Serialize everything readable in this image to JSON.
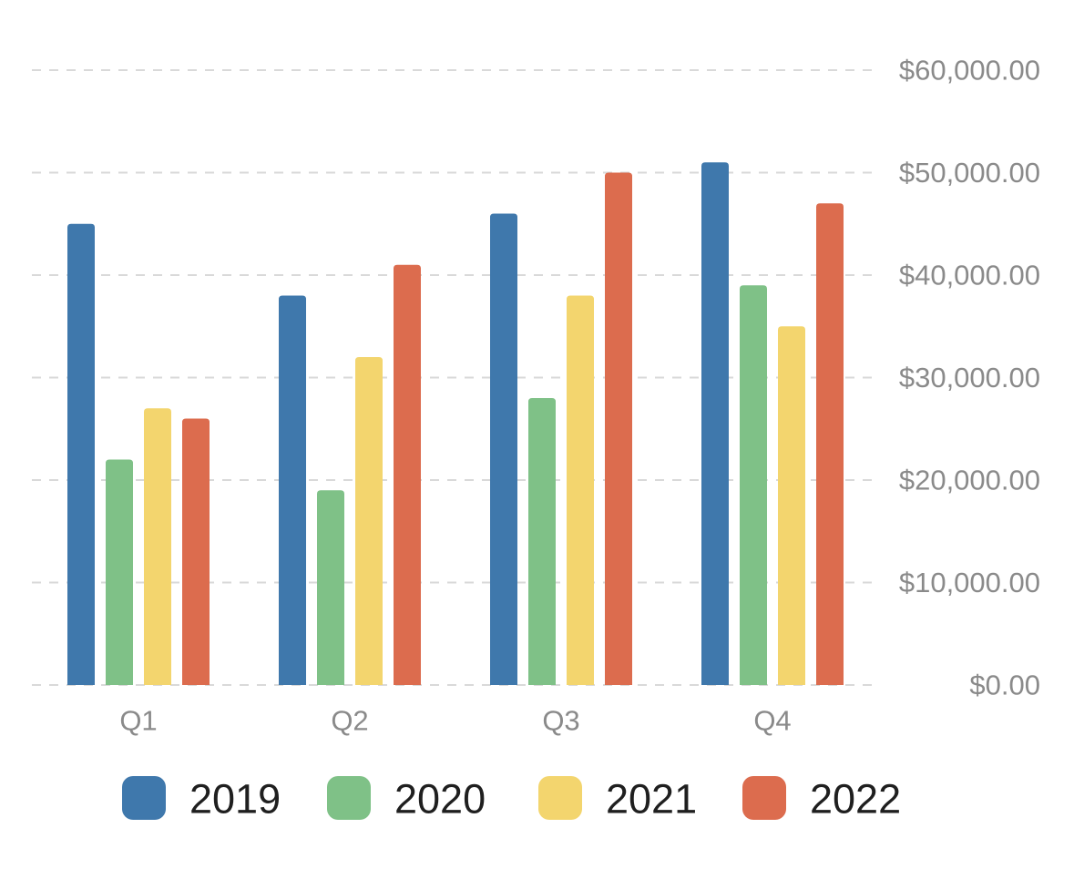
{
  "chart_data": {
    "type": "bar",
    "categories": [
      "Q1",
      "Q2",
      "Q3",
      "Q4"
    ],
    "series": [
      {
        "name": "2019",
        "color": "#3f78ac",
        "values": [
          45000,
          38000,
          46000,
          51000
        ]
      },
      {
        "name": "2020",
        "color": "#7fc187",
        "values": [
          22000,
          19000,
          28000,
          39000
        ]
      },
      {
        "name": "2021",
        "color": "#f3d56e",
        "values": [
          27000,
          32000,
          38000,
          35000
        ]
      },
      {
        "name": "2022",
        "color": "#dc6c4e",
        "values": [
          26000,
          41000,
          50000,
          47000
        ]
      }
    ],
    "y_ticks": [
      "$0.00",
      "$10,000.00",
      "$20,000.00",
      "$30,000.00",
      "$40,000.00",
      "$50,000.00",
      "$60,000.00"
    ],
    "ylim": [
      0,
      60000
    ],
    "y_axis_side": "right",
    "grid": "dashed horizontal",
    "legend_position": "bottom",
    "title": "",
    "xlabel": "",
    "ylabel": ""
  }
}
